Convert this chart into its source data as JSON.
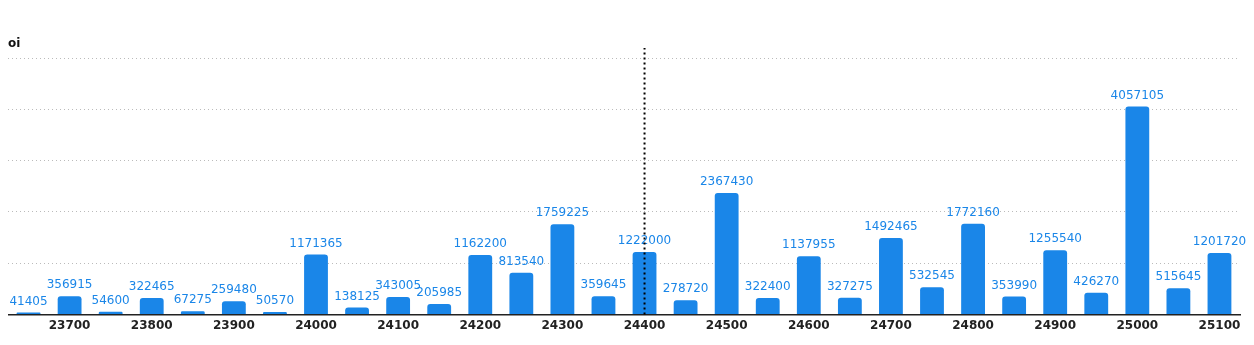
{
  "chart_data": {
    "type": "bar",
    "ylabel": "oi",
    "categories": [
      null,
      "23700",
      null,
      "23800",
      null,
      "23900",
      null,
      "24000",
      null,
      "24100",
      null,
      "24200",
      null,
      "24300",
      null,
      "24400",
      null,
      "24500",
      null,
      "24600",
      null,
      "24700",
      null,
      "24800",
      null,
      "24900",
      null,
      "25000",
      null,
      "25100"
    ],
    "values": [
      41405,
      356915,
      54600,
      322465,
      67275,
      259480,
      50570,
      1171365,
      138125,
      343005,
      205985,
      1162200,
      813540,
      1759225,
      359645,
      1222000,
      278720,
      2367430,
      322400,
      1137955,
      327275,
      1492465,
      532545,
      1772160,
      353990,
      1255540,
      426270,
      4057105,
      515645,
      1201720
    ],
    "color": "#1a86e8",
    "data_labels": true,
    "tick_labels": "x",
    "grid": "y",
    "legend": false,
    "ref_lines": [
      {
        "axis": "x",
        "value": "24400",
        "color": "#000000",
        "line_style": "dotted"
      }
    ]
  }
}
